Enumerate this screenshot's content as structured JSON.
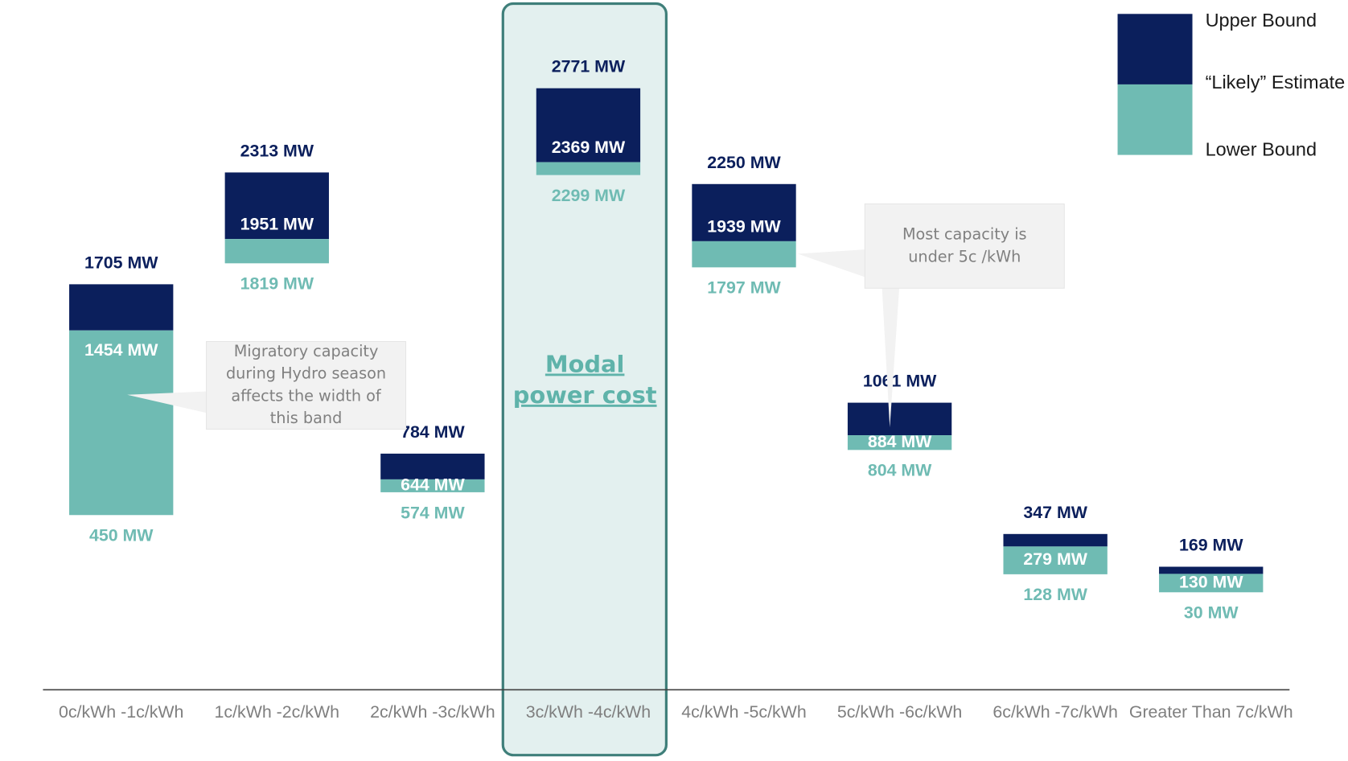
{
  "chart_data": {
    "type": "floating-bar",
    "categories": [
      "0c/kWh -1c/kWh",
      "1c/kWh -2c/kWh",
      "2c/kWh -3c/kWh",
      "3c/kWh -4c/kWh",
      "4c/kWh -5c/kWh",
      "5c/kWh -6c/kWh",
      "6c/kWh -7c/kWh",
      "Greater Than 7c/kWh"
    ],
    "series": [
      {
        "name": "Upper Bound",
        "color": "#0b1f5c",
        "values": [
          1705,
          2313,
          784,
          2771,
          2250,
          1061,
          347,
          169
        ],
        "value_labels": [
          "1705 MW",
          "2313 MW",
          "784 MW",
          "2771 MW",
          "2250 MW",
          "1061 MW",
          "347 MW",
          "169 MW"
        ]
      },
      {
        "name": "“Likely” Estimate",
        "color": "#ffffff",
        "values": [
          1454,
          1951,
          644,
          2369,
          1939,
          884,
          279,
          130
        ],
        "value_labels": [
          "1454 MW",
          "1951 MW",
          "644 MW",
          "2369 MW",
          "1939 MW",
          "884 MW",
          "279 MW",
          "130 MW"
        ]
      },
      {
        "name": "Lower Bound",
        "color": "#6fbbb3",
        "values": [
          450,
          1819,
          574,
          2299,
          1797,
          804,
          128,
          30
        ],
        "value_labels": [
          "450 MW",
          "1819 MW",
          "574 MW",
          "2299 MW",
          "1797 MW",
          "804 MW",
          "128 MW",
          "30 MW"
        ]
      }
    ],
    "ylim": [
      -500,
      3250
    ],
    "highlight": {
      "category": 3,
      "lines": [
        "Modal",
        "power cost"
      ]
    },
    "annotations": [
      {
        "lines": [
          "Migratory capacity",
          "during Hydro season",
          "affects the width of",
          "this band"
        ],
        "category": 0
      },
      {
        "lines": [
          "Most capacity is",
          "under 5c /kWh"
        ],
        "category": 4
      }
    ]
  }
}
